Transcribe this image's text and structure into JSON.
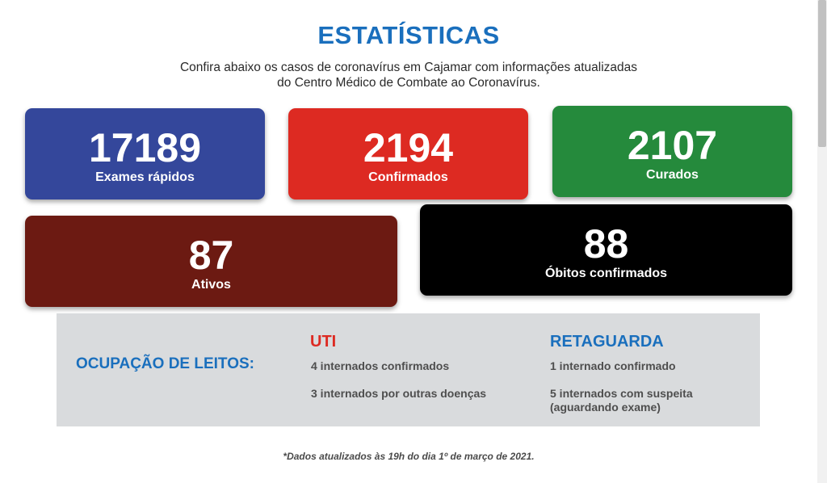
{
  "header": {
    "title": "ESTATÍSTICAS",
    "subtitle_line1": "Confira abaixo os casos de coronavírus em Cajamar com informações atualizadas",
    "subtitle_line2": "do Centro Médico de Combate ao Coronavírus."
  },
  "cards": {
    "exames": {
      "value": "17189",
      "label": "Exames rápidos",
      "color": "#34479b"
    },
    "confirmados": {
      "value": "2194",
      "label": "Confirmados",
      "color": "#dd2a22"
    },
    "curados": {
      "value": "2107",
      "label": "Curados",
      "color": "#258a3c"
    },
    "ativos": {
      "value": "87",
      "label": "Ativos",
      "color": "#6c1a12"
    },
    "obitos": {
      "value": "88",
      "label": "Óbitos confirmados",
      "color": "#000000"
    }
  },
  "beds": {
    "heading": "OCUPAÇÃO DE LEITOS:",
    "uti": {
      "title": "UTI",
      "item1": "4 internados confirmados",
      "item2": "3 internados por outras doenças"
    },
    "retaguarda": {
      "title": "RETAGUARDA",
      "item1": "1 internado confirmado",
      "item2_line1": "5 internados com suspeita",
      "item2_line2": "(aguardando exame)"
    }
  },
  "footnote": "*Dados atualizados às 19h do dia 1º de março de 2021."
}
